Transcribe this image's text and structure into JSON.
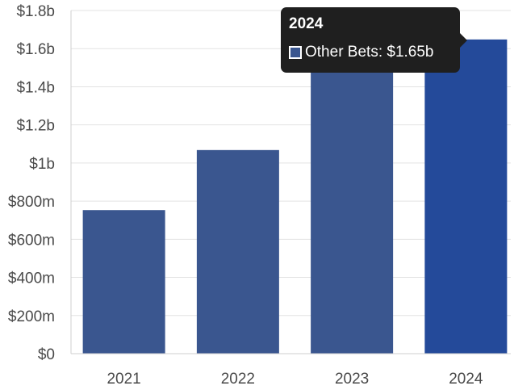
{
  "chart_data": {
    "type": "bar",
    "categories": [
      "2021",
      "2022",
      "2023",
      "2024"
    ],
    "series": [
      {
        "name": "Other Bets",
        "values": [
          0.753,
          1.068,
          1.527,
          1.648
        ]
      }
    ],
    "y_ticks": [
      "$0",
      "$200m",
      "$400m",
      "$600m",
      "$800m",
      "$1b",
      "$1.2b",
      "$1.4b",
      "$1.6b",
      "$1.8b"
    ],
    "ylim": [
      0,
      1.8
    ],
    "y_unit": "$b",
    "grid": true,
    "highlighted_index": 3,
    "colors": {
      "bar": "#3a568f",
      "bar_highlight": "#244a9a",
      "grid": "#e3e3e3",
      "axis": "#cfcfcf"
    },
    "tooltip": {
      "title": "2024",
      "series_label": "Other Bets",
      "value_text": "$1.65b",
      "swatch_color": "#3a568f"
    }
  }
}
